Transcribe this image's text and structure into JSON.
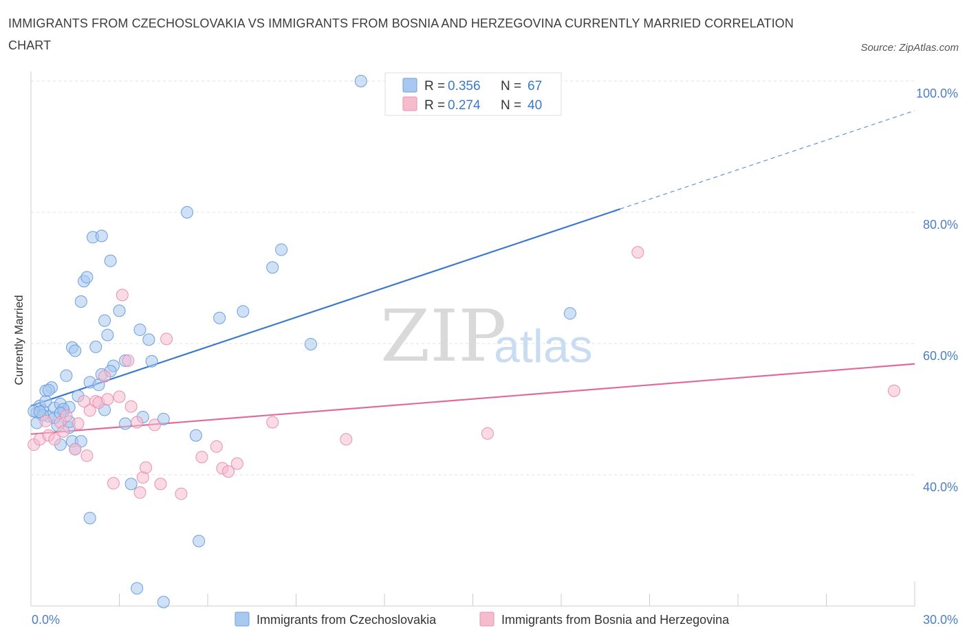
{
  "title": "IMMIGRANTS FROM CZECHOSLOVAKIA VS IMMIGRANTS FROM BOSNIA AND HERZEGOVINA CURRENTLY MARRIED CORRELATION CHART",
  "source": "Source: ZipAtlas.com",
  "watermark": {
    "zip": "ZIP",
    "atlas": "atlas"
  },
  "legend": {
    "row1": {
      "r_label": "R = ",
      "r_value": "0.356",
      "n_label": "N = ",
      "n_value": "67"
    },
    "row2": {
      "r_label": "R = ",
      "r_value": "0.274",
      "n_label": "N = ",
      "n_value": "40"
    }
  },
  "colors": {
    "blue_fill": "#a9c8ef",
    "blue_stroke": "#6a9fe0",
    "blue_line": "#3a78d0",
    "pink_fill": "#f5bccd",
    "pink_stroke": "#e890ad",
    "pink_line": "#e06a98",
    "tick": "#4a7fc4",
    "grid": "#e2e2e2"
  },
  "chart_data": {
    "type": "scatter",
    "xlabel": "",
    "ylabel": "Currently Married",
    "x_ticks": [
      "0.0%",
      "30.0%"
    ],
    "y_ticks": [
      "40.0%",
      "60.0%",
      "80.0%",
      "100.0%"
    ],
    "xlim": [
      0,
      30
    ],
    "ylim": [
      20,
      100
    ],
    "legend_position": "top-center",
    "series": [
      {
        "name": "Immigrants from Czechoslovakia",
        "color": "blue",
        "trend": {
          "x0": 0.0,
          "y0": 50.5,
          "x1": 20.0,
          "y1": 80.5,
          "dashed_to_x": 30.0
        },
        "points": [
          [
            0.2,
            49.5
          ],
          [
            0.3,
            50.5
          ],
          [
            0.4,
            49.8
          ],
          [
            0.5,
            51.2
          ],
          [
            0.6,
            48.9
          ],
          [
            0.7,
            53.3
          ],
          [
            0.5,
            52.8
          ],
          [
            0.8,
            50.2
          ],
          [
            0.9,
            47.5
          ],
          [
            1.0,
            50.8
          ],
          [
            1.1,
            49.6
          ],
          [
            1.2,
            55.1
          ],
          [
            1.3,
            47.2
          ],
          [
            1.4,
            59.4
          ],
          [
            1.5,
            58.9
          ],
          [
            1.3,
            50.3
          ],
          [
            1.4,
            45.1
          ],
          [
            1.6,
            52.0
          ],
          [
            1.7,
            66.4
          ],
          [
            1.8,
            69.5
          ],
          [
            1.9,
            70.1
          ],
          [
            2.0,
            54.1
          ],
          [
            2.1,
            76.2
          ],
          [
            2.2,
            59.5
          ],
          [
            2.3,
            53.7
          ],
          [
            2.4,
            76.4
          ],
          [
            2.5,
            63.5
          ],
          [
            2.6,
            61.3
          ],
          [
            2.7,
            72.6
          ],
          [
            2.8,
            56.6
          ],
          [
            3.0,
            65.0
          ],
          [
            3.2,
            57.4
          ],
          [
            3.4,
            38.6
          ],
          [
            3.6,
            22.7
          ],
          [
            3.7,
            62.1
          ],
          [
            3.8,
            48.8
          ],
          [
            4.0,
            60.6
          ],
          [
            4.1,
            57.3
          ],
          [
            4.5,
            20.6
          ],
          [
            5.3,
            80.0
          ],
          [
            5.7,
            29.9
          ],
          [
            5.6,
            46.0
          ],
          [
            6.4,
            63.9
          ],
          [
            7.2,
            64.9
          ],
          [
            8.2,
            71.6
          ],
          [
            8.5,
            74.3
          ],
          [
            9.5,
            59.9
          ],
          [
            11.2,
            100.0
          ],
          [
            18.3,
            64.6
          ],
          [
            0.1,
            49.7
          ],
          [
            0.2,
            47.9
          ],
          [
            2.5,
            49.9
          ],
          [
            1.7,
            45.1
          ],
          [
            1.5,
            43.9
          ],
          [
            4.5,
            48.5
          ],
          [
            3.2,
            47.8
          ],
          [
            2.4,
            55.3
          ],
          [
            1.0,
            44.6
          ],
          [
            2.0,
            33.4
          ],
          [
            1.1,
            50.0
          ],
          [
            0.4,
            49.1
          ],
          [
            0.6,
            52.9
          ],
          [
            2.7,
            55.8
          ],
          [
            0.3,
            49.6
          ],
          [
            0.8,
            48.7
          ],
          [
            1.3,
            48.1
          ],
          [
            1.0,
            49.4
          ]
        ]
      },
      {
        "name": "Immigrants from Bosnia and Herzegovina",
        "color": "pink",
        "trend": {
          "x0": 0.0,
          "y0": 46.2,
          "x1": 30.0,
          "y1": 56.9
        },
        "points": [
          [
            0.1,
            44.6
          ],
          [
            0.3,
            45.4
          ],
          [
            0.5,
            48.2
          ],
          [
            0.6,
            46.0
          ],
          [
            0.8,
            45.4
          ],
          [
            1.0,
            48.0
          ],
          [
            1.1,
            46.6
          ],
          [
            1.2,
            49.0
          ],
          [
            1.5,
            43.9
          ],
          [
            1.6,
            47.8
          ],
          [
            1.8,
            51.2
          ],
          [
            1.9,
            42.9
          ],
          [
            2.0,
            49.8
          ],
          [
            2.2,
            51.2
          ],
          [
            2.3,
            51.0
          ],
          [
            2.5,
            55.0
          ],
          [
            2.6,
            51.5
          ],
          [
            2.8,
            38.7
          ],
          [
            3.0,
            51.9
          ],
          [
            3.1,
            67.4
          ],
          [
            3.3,
            57.4
          ],
          [
            3.4,
            50.4
          ],
          [
            3.6,
            48.0
          ],
          [
            3.7,
            37.3
          ],
          [
            3.8,
            39.6
          ],
          [
            3.9,
            41.1
          ],
          [
            4.2,
            47.6
          ],
          [
            4.4,
            38.6
          ],
          [
            4.6,
            60.7
          ],
          [
            5.1,
            37.1
          ],
          [
            5.8,
            42.7
          ],
          [
            6.3,
            44.3
          ],
          [
            6.5,
            41.0
          ],
          [
            6.7,
            40.5
          ],
          [
            7.0,
            41.7
          ],
          [
            8.2,
            48.0
          ],
          [
            10.7,
            45.4
          ],
          [
            15.5,
            46.3
          ],
          [
            20.6,
            73.9
          ],
          [
            29.3,
            52.8
          ]
        ]
      }
    ]
  },
  "bottom_legend": [
    {
      "label": "Immigrants from Czechoslovakia"
    },
    {
      "label": "Immigrants from Bosnia and Herzegovina"
    }
  ]
}
